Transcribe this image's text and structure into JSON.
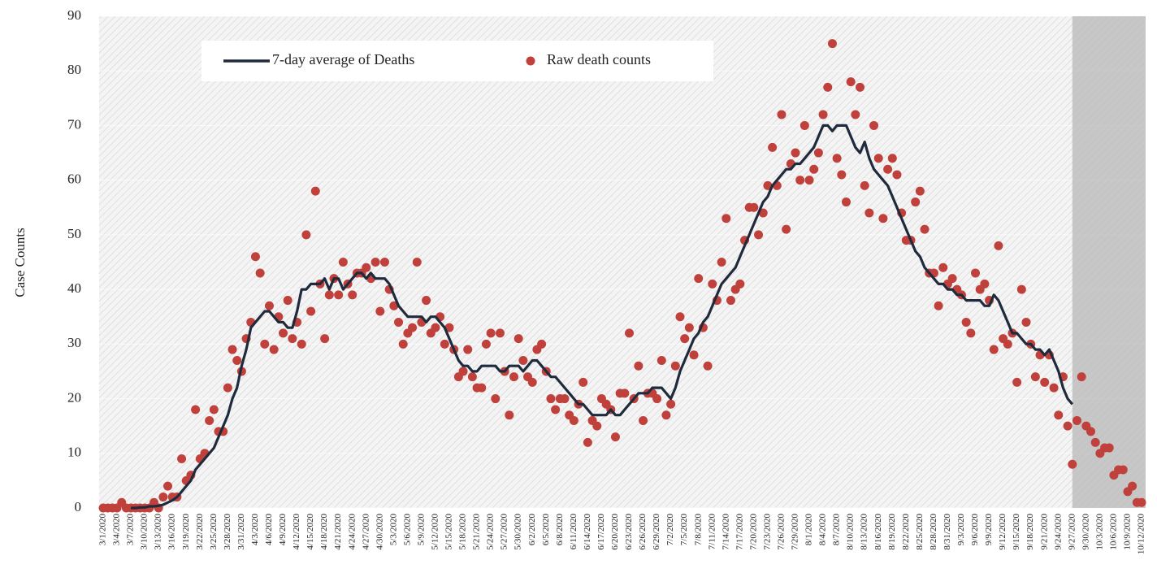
{
  "chart_data": {
    "type": "line",
    "y_axis_label": "Case Counts",
    "ylim": [
      0,
      90
    ],
    "yticks": [
      0,
      10,
      20,
      30,
      40,
      50,
      60,
      70,
      80,
      90
    ],
    "grid": true,
    "legend_position": "top",
    "categories": [
      "3/1/2020",
      null,
      null,
      "3/4/2020",
      null,
      null,
      "3/7/2020",
      null,
      null,
      "3/10/2020",
      null,
      null,
      "3/13/2020",
      null,
      null,
      "3/16/2020",
      null,
      null,
      "3/19/2020",
      null,
      null,
      "3/22/2020",
      null,
      null,
      "3/25/2020",
      null,
      null,
      "3/28/2020",
      null,
      null,
      "3/31/2020",
      null,
      null,
      "4/3/2020",
      null,
      null,
      "4/6/2020",
      null,
      null,
      "4/9/2020",
      null,
      null,
      "4/12/2020",
      null,
      null,
      "4/15/2020",
      null,
      null,
      "4/18/2020",
      null,
      null,
      "4/21/2020",
      null,
      null,
      "4/24/2020",
      null,
      null,
      "4/27/2020",
      null,
      null,
      "4/30/2020",
      null,
      null,
      "5/3/2020",
      null,
      null,
      "5/6/2020",
      null,
      null,
      "5/9/2020",
      null,
      null,
      "5/12/2020",
      null,
      null,
      "5/15/2020",
      null,
      null,
      "5/18/2020",
      null,
      null,
      "5/21/2020",
      null,
      null,
      "5/24/2020",
      null,
      null,
      "5/27/2020",
      null,
      null,
      "5/30/2020",
      null,
      null,
      "6/2/2020",
      null,
      null,
      "6/5/2020",
      null,
      null,
      "6/8/2020",
      null,
      null,
      "6/11/2020",
      null,
      null,
      "6/14/2020",
      null,
      null,
      "6/17/2020",
      null,
      null,
      "6/20/2020",
      null,
      null,
      "6/23/2020",
      null,
      null,
      "6/26/2020",
      null,
      null,
      "6/29/2020",
      null,
      null,
      "7/2/2020",
      null,
      null,
      "7/5/2020",
      null,
      null,
      "7/8/2020",
      null,
      null,
      "7/11/2020",
      null,
      null,
      "7/14/2020",
      null,
      null,
      "7/17/2020",
      null,
      null,
      "7/20/2020",
      null,
      null,
      "7/23/2020",
      null,
      null,
      "7/26/2020",
      null,
      null,
      "7/29/2020",
      null,
      null,
      "8/1/2020",
      null,
      null,
      "8/4/2020",
      null,
      null,
      "8/7/2020",
      null,
      null,
      "8/10/2020",
      null,
      null,
      "8/13/2020",
      null,
      null,
      "8/16/2020",
      null,
      null,
      "8/19/2020",
      null,
      null,
      "8/22/2020",
      null,
      null,
      "8/25/2020",
      null,
      null,
      "8/28/2020",
      null,
      null,
      "8/31/2020",
      null,
      null,
      "9/3/2020",
      null,
      null,
      "9/6/2020",
      null,
      null,
      "9/9/2020",
      null,
      null,
      "9/12/2020",
      null,
      null,
      "9/15/2020",
      null,
      null,
      "9/18/2020",
      null,
      null,
      "9/21/2020",
      null,
      null,
      "9/24/2020",
      null,
      null,
      "9/27/2020",
      null,
      null,
      "9/30/2020",
      null,
      null,
      "10/3/2020",
      null,
      null,
      "10/6/2020",
      null,
      null,
      "10/9/2020",
      null,
      null,
      "10/12/2020"
    ],
    "series": [
      {
        "name": "7-day average of Deaths",
        "style": "line",
        "color": "#1f2b3c",
        "values": [
          null,
          null,
          null,
          null,
          null,
          null,
          0,
          0,
          0.1,
          0.1,
          0.3,
          0.3,
          0.4,
          0.6,
          1,
          1.4,
          2,
          3,
          4,
          5,
          7,
          8,
          9,
          10,
          11,
          13,
          15,
          17,
          20,
          22,
          26,
          29,
          33,
          34,
          35,
          36,
          36,
          35,
          34,
          34,
          33,
          33,
          36,
          40,
          40,
          41,
          41,
          41,
          42,
          40,
          42,
          42,
          40,
          41,
          42,
          43,
          43,
          42,
          43,
          42,
          42,
          42,
          41,
          39,
          37,
          36,
          35,
          35,
          35,
          35,
          34,
          35,
          35,
          34,
          33,
          31,
          29,
          27,
          26,
          26,
          25,
          25,
          26,
          26,
          26,
          26,
          25,
          25,
          26,
          26,
          26,
          25,
          26,
          27,
          27,
          26,
          25,
          24,
          24,
          23,
          22,
          21,
          20,
          19,
          19,
          18,
          17,
          17,
          17,
          17,
          18,
          17,
          17,
          18,
          19,
          20,
          21,
          21,
          21,
          22,
          22,
          22,
          21,
          20,
          22,
          25,
          27,
          29,
          31,
          32,
          34,
          35,
          37,
          39,
          41,
          42,
          43,
          44,
          46,
          48,
          50,
          52,
          54,
          56,
          57,
          59,
          60,
          61,
          62,
          62,
          63,
          63,
          64,
          65,
          66,
          68,
          70,
          70,
          69,
          70,
          70,
          70,
          68,
          66,
          65,
          67,
          64,
          62,
          61,
          60,
          59,
          57,
          55,
          53,
          51,
          49,
          47,
          46,
          44,
          43,
          42,
          41,
          41,
          40,
          40,
          39,
          39,
          38,
          38,
          38,
          38,
          37,
          37,
          39,
          38,
          36,
          34,
          32,
          32,
          31,
          30,
          30,
          29,
          29,
          28,
          29,
          27,
          25,
          22,
          20,
          19,
          null,
          null,
          null,
          null,
          null,
          null,
          null,
          null,
          null,
          null,
          null,
          null,
          null,
          null,
          null
        ]
      },
      {
        "name": "Raw death counts",
        "style": "markers",
        "color": "#c0403c",
        "values": [
          0,
          0,
          0,
          0,
          1,
          0,
          0,
          0,
          0,
          0,
          0,
          1,
          0,
          2,
          4,
          2,
          2,
          9,
          5,
          6,
          18,
          9,
          10,
          16,
          18,
          14,
          14,
          22,
          29,
          27,
          25,
          31,
          34,
          46,
          43,
          30,
          37,
          29,
          35,
          32,
          38,
          31,
          34,
          30,
          50,
          36,
          58,
          41,
          31,
          39,
          42,
          39,
          45,
          41,
          39,
          43,
          43,
          44,
          42,
          45,
          36,
          45,
          40,
          37,
          34,
          30,
          32,
          33,
          45,
          34,
          38,
          32,
          33,
          35,
          30,
          33,
          29,
          24,
          25,
          29,
          24,
          22,
          22,
          30,
          32,
          20,
          32,
          25,
          17,
          24,
          31,
          27,
          24,
          23,
          29,
          30,
          25,
          20,
          18,
          20,
          20,
          17,
          16,
          19,
          23,
          12,
          16,
          15,
          20,
          19,
          18,
          13,
          21,
          21,
          32,
          20,
          26,
          16,
          21,
          21,
          20,
          27,
          17,
          19,
          26,
          35,
          31,
          33,
          28,
          42,
          33,
          26,
          41,
          38,
          45,
          53,
          38,
          40,
          41,
          49,
          55,
          55,
          50,
          54,
          59,
          66,
          59,
          72,
          51,
          63,
          65,
          60,
          70,
          60,
          62,
          65,
          72,
          77,
          85,
          64,
          61,
          56,
          78,
          72,
          77,
          59,
          54,
          70,
          64,
          53,
          62,
          64,
          61,
          54,
          49,
          49,
          56,
          58,
          51,
          43,
          43,
          37,
          44,
          41,
          42,
          40,
          39,
          34,
          32,
          43,
          40,
          41,
          38,
          29,
          48,
          31,
          30,
          32,
          23,
          40,
          34,
          30,
          24,
          28,
          23,
          28,
          22,
          17,
          24,
          15,
          8,
          16,
          24,
          15,
          14,
          12,
          10,
          11,
          11,
          6,
          7,
          7,
          3,
          4,
          1,
          1
        ]
      }
    ]
  }
}
